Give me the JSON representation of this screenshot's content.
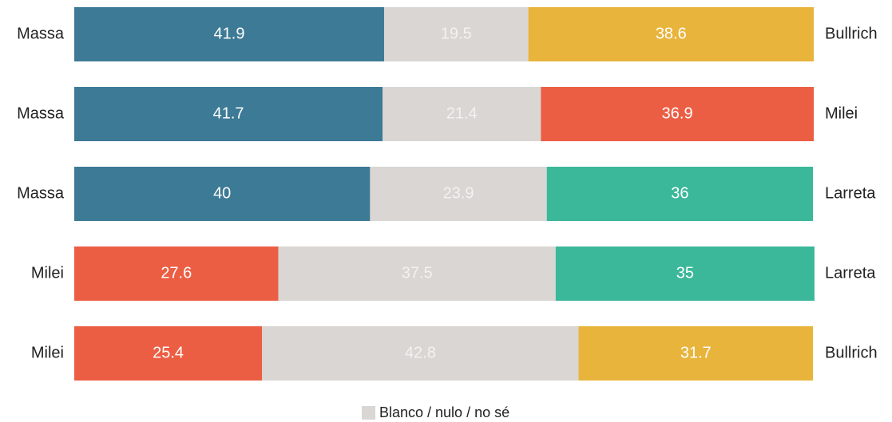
{
  "chart_data": {
    "type": "diverging-stacked-bar",
    "xlim": [
      0,
      100
    ],
    "legend": {
      "label": "Blanco / nulo / no sé",
      "color": "#d9d6d3"
    },
    "rows": [
      {
        "left": "Massa",
        "right": "Bullrich",
        "values": [
          41.9,
          19.5,
          38.6
        ],
        "left_color": "#3d7a96",
        "right_color": "#e9b43c"
      },
      {
        "left": "Massa",
        "right": "Milei",
        "values": [
          41.7,
          21.4,
          36.9
        ],
        "left_color": "#3d7a96",
        "right_color": "#ec5e43"
      },
      {
        "left": "Massa",
        "right": "Larreta",
        "values": [
          40,
          23.9,
          36
        ],
        "left_color": "#3d7a96",
        "right_color": "#3bb79a"
      },
      {
        "left": "Milei",
        "right": "Larreta",
        "values": [
          27.6,
          37.5,
          35
        ],
        "left_color": "#ec5e43",
        "right_color": "#3bb79a"
      },
      {
        "left": "Milei",
        "right": "Bullrich",
        "values": [
          25.4,
          42.8,
          31.7
        ],
        "left_color": "#ec5e43",
        "right_color": "#e9b43c"
      }
    ]
  }
}
